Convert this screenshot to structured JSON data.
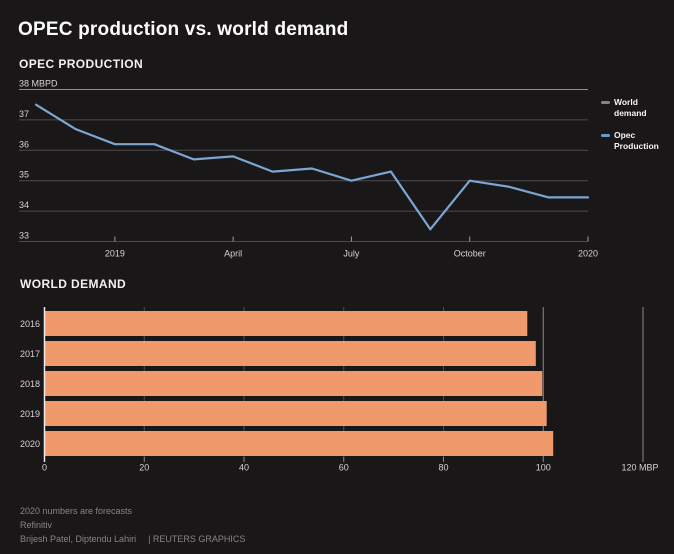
{
  "header": {
    "title": "OPEC production vs. world demand"
  },
  "colors": {
    "background": "#1a1719",
    "title_text": "#fdfdfd",
    "axis_text": "#d6d2d6",
    "grid_minor": "#4c4b4f",
    "grid_major": "#909090",
    "footer_text": "#8a8289",
    "line_blue": "#7ba6d4",
    "legend_purple": "#8d7b9c",
    "bar_orange": "#f0996a"
  },
  "chart_data": [
    {
      "type": "line",
      "title": "OPEC PRODUCTION",
      "ylabel": "MBPD",
      "ylim": [
        33,
        38
      ],
      "yticks": [
        38,
        37,
        36,
        35,
        34,
        33
      ],
      "ytick_labels": [
        "38 MBPD",
        "37",
        "36",
        "35",
        "34",
        "33"
      ],
      "grid": true,
      "x": [
        "Nov 2018",
        "Dec 2018",
        "Jan 2019",
        "Feb 2019",
        "Mar 2019",
        "Apr 2019",
        "May 2019",
        "Jun 2019",
        "Jul 2019",
        "Aug 2019",
        "Sep 2019",
        "Oct 2019",
        "Nov 2019",
        "Dec 2019",
        "Jan 2020"
      ],
      "xtick_labels": [
        "2019",
        "April",
        "July",
        "October",
        "2020"
      ],
      "xtick_positions": [
        2,
        5,
        8,
        11,
        14
      ],
      "series": [
        {
          "name": "Opec Production",
          "color": "#7ba6d4",
          "values": [
            37.5,
            36.7,
            36.2,
            36.2,
            35.7,
            35.8,
            35.3,
            35.4,
            35.0,
            35.3,
            33.4,
            35.0,
            34.8,
            34.45,
            34.45
          ]
        }
      ],
      "legend_position": "right",
      "legend": [
        {
          "label": "World demand",
          "color": "#8d7b9c"
        },
        {
          "label": "Opec Production",
          "color": "#6f9ac8"
        }
      ]
    },
    {
      "type": "bar",
      "title": "WORLD DEMAND",
      "orientation": "horizontal",
      "categories": [
        "2016",
        "2017",
        "2018",
        "2019",
        "2020"
      ],
      "values": [
        96.8,
        98.5,
        99.8,
        100.7,
        102.0
      ],
      "xlim": [
        0,
        120
      ],
      "xticks": [
        0,
        20,
        40,
        60,
        80,
        100,
        120
      ],
      "xtick_labels": [
        "0",
        "20",
        "40",
        "60",
        "80",
        "100",
        "120 MBP"
      ],
      "unit": "MBP",
      "bar_color": "#f0996a",
      "grid": true
    }
  ],
  "footer": {
    "note": "2020 numbers are forecasts",
    "source": "Refinitiv",
    "byline": "Brijesh Patel, Diptendu Lahiri",
    "credit": "| REUTERS GRAPHICS"
  }
}
